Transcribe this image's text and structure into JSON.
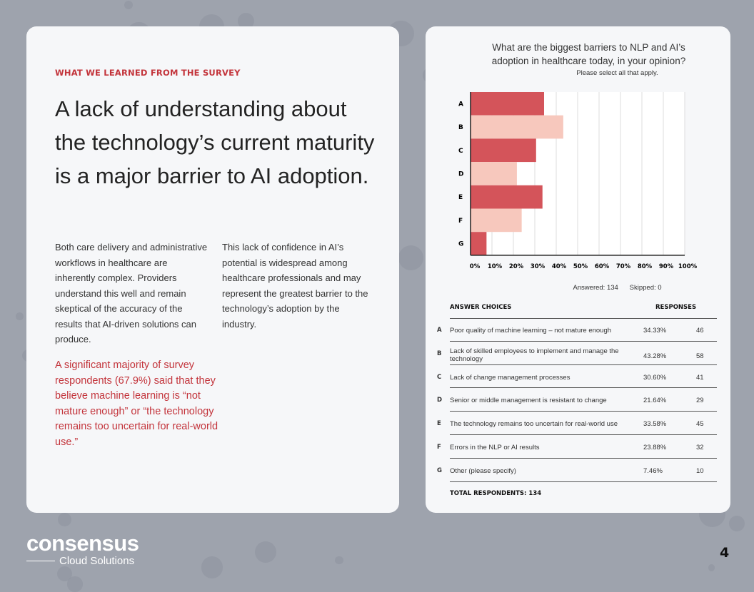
{
  "left": {
    "kicker": "WHAT WE LEARNED FROM THE SURVEY",
    "headline": "A lack of understanding about the technology’s current maturity is a major barrier to AI adoption.",
    "col1": "Both care delivery and administrative workflows in healthcare are inherently complex. Providers understand this well and remain skeptical of the accuracy of the results that AI-driven solutions can produce.",
    "col2": "This lack of confidence in AI’s potential is widespread among healthcare professionals and may represent the greatest barrier to the technology’s adoption by the industry.",
    "quote": "A significant majority of survey respondents (67.9%) said that they believe machine learning is “not mature enough” or “the technology remains too uncertain for real-world use.”"
  },
  "chart_data": {
    "type": "bar",
    "orientation": "horizontal",
    "title": "What are the biggest barriers to NLP and AI’s adoption in healthcare today, in your opinion?",
    "subtitle": "Please select all that apply.",
    "categories": [
      "A",
      "B",
      "C",
      "D",
      "E",
      "F",
      "G"
    ],
    "values": [
      34.33,
      43.28,
      30.6,
      21.64,
      33.58,
      23.88,
      7.46
    ],
    "xlim": [
      0,
      100
    ],
    "xticks": [
      "0%",
      "10%",
      "20%",
      "30%",
      "40%",
      "50%",
      "60%",
      "70%",
      "80%",
      "90%",
      "100%"
    ],
    "grid": true,
    "colors": [
      "#d4545a",
      "#f7c8bd"
    ],
    "answered": "Answered: 134",
    "skipped": "Skipped: 0"
  },
  "table": {
    "header_choices": "ANSWER CHOICES",
    "header_responses": "RESPONSES",
    "rows": [
      {
        "letter": "A",
        "text": "Poor quality of machine learning – not mature enough",
        "pct": "34.33%",
        "count": "46"
      },
      {
        "letter": "B",
        "text": "Lack of skilled employees to implement and manage the technology",
        "pct": "43.28%",
        "count": "58"
      },
      {
        "letter": "C",
        "text": "Lack of change management processes",
        "pct": "30.60%",
        "count": "41"
      },
      {
        "letter": "D",
        "text": "Senior or middle management is resistant to change",
        "pct": "21.64%",
        "count": "29"
      },
      {
        "letter": "E",
        "text": "The technology remains too uncertain for real-world use",
        "pct": "33.58%",
        "count": "45"
      },
      {
        "letter": "F",
        "text": "Errors in the NLP or AI results",
        "pct": "23.88%",
        "count": "32"
      },
      {
        "letter": "G",
        "text": "Other (please specify)",
        "pct": "7.46%",
        "count": "10"
      }
    ],
    "total": "TOTAL RESPONDENTS: 134"
  },
  "footer": {
    "logo_main": "consensus",
    "logo_sub": "Cloud Solutions",
    "page": "4"
  }
}
